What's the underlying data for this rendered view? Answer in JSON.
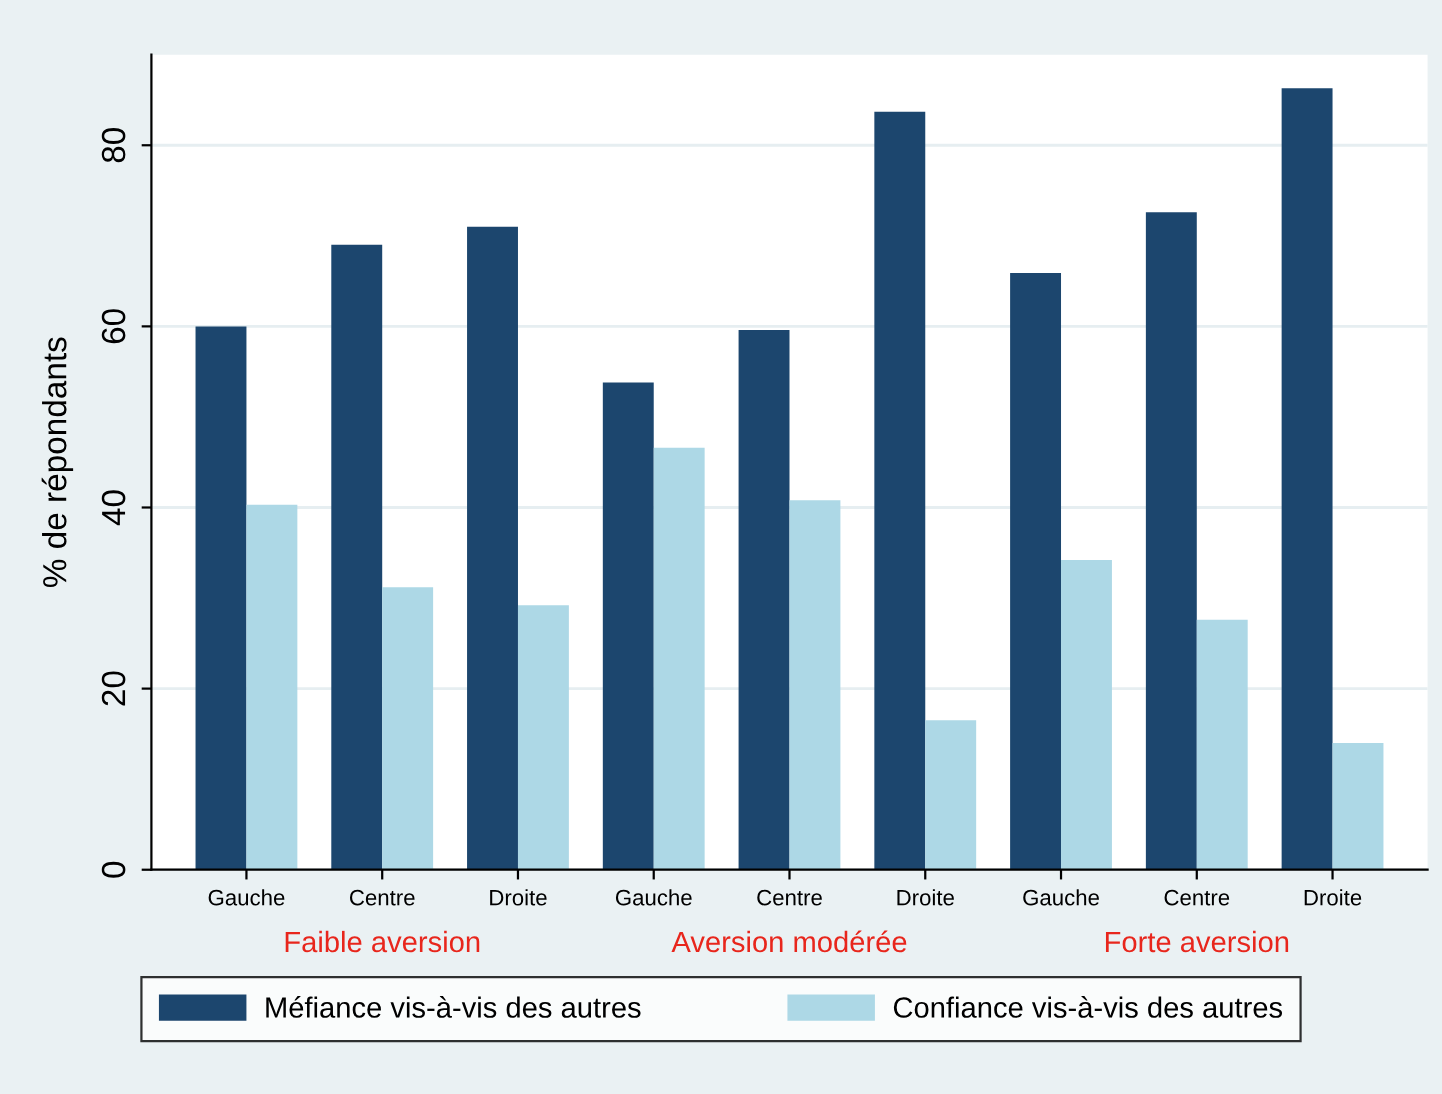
{
  "chart_data": {
    "type": "bar",
    "ylabel": "% de répondants",
    "categories": [
      "Gauche",
      "Centre",
      "Droite",
      "Gauche",
      "Centre",
      "Droite",
      "Gauche",
      "Centre",
      "Droite"
    ],
    "series": [
      {
        "name": "Méfiance vis-à-vis des autres",
        "color": "#1c466e",
        "values": [
          60,
          69,
          71,
          53.8,
          59.6,
          83.7,
          65.9,
          72.6,
          86.3
        ]
      },
      {
        "name": "Confiance vis-à-vis des autres",
        "color": "#add8e6",
        "values": [
          40.3,
          31.2,
          29.2,
          46.6,
          40.8,
          16.5,
          34.2,
          27.6,
          14.0
        ]
      }
    ],
    "annotations": [
      "Faible aversion",
      "Aversion modérée",
      "Forte aversion"
    ],
    "ylim": [
      0,
      90
    ],
    "yticks": [
      0,
      20,
      40,
      60,
      80
    ],
    "grid": "y",
    "legend": "bottom"
  }
}
